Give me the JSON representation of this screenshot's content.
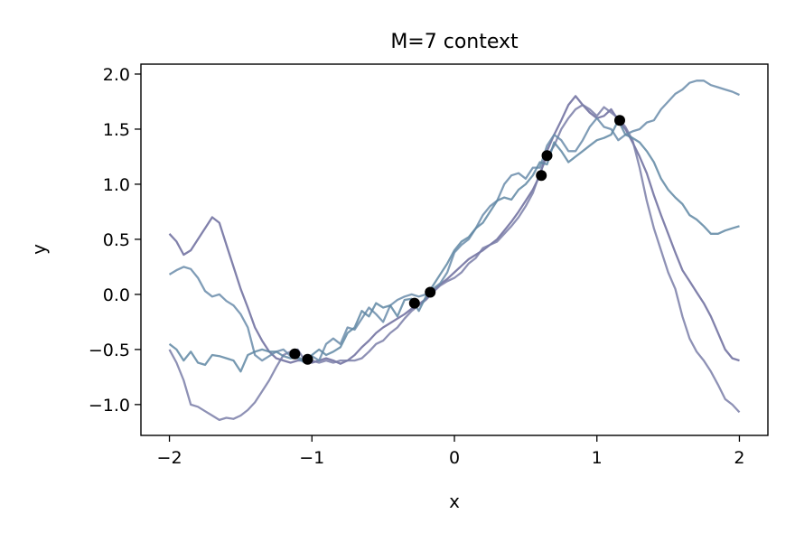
{
  "chart_data": {
    "type": "line",
    "title": "M=7 context",
    "xlabel": "x",
    "ylabel": "y",
    "xlim": [
      -2.2,
      2.2
    ],
    "ylim": [
      -1.28,
      2.09
    ],
    "grid": false,
    "x_ticks": [
      {
        "value": -2,
        "label": "−2"
      },
      {
        "value": -1,
        "label": "−1"
      },
      {
        "value": 0,
        "label": "0"
      },
      {
        "value": 1,
        "label": "1"
      },
      {
        "value": 2,
        "label": "2"
      }
    ],
    "y_ticks": [
      {
        "value": -1.0,
        "label": "−1.0"
      },
      {
        "value": -0.5,
        "label": "−0.5"
      },
      {
        "value": 0.0,
        "label": "0.0"
      },
      {
        "value": 0.5,
        "label": "0.5"
      },
      {
        "value": 1.0,
        "label": "1.0"
      },
      {
        "value": 1.5,
        "label": "1.5"
      },
      {
        "value": 2.0,
        "label": "2.0"
      }
    ],
    "context_points": {
      "color": "#000000",
      "x": [
        -1.12,
        -1.03,
        -0.28,
        -0.17,
        0.61,
        0.65,
        1.16
      ],
      "y": [
        -0.54,
        -0.59,
        -0.08,
        0.02,
        1.08,
        1.26,
        1.58
      ]
    },
    "series": [
      {
        "color": "#6b6b9c",
        "x": [
          -2.0,
          -1.95,
          -1.9,
          -1.85,
          -1.8,
          -1.75,
          -1.7,
          -1.65,
          -1.6,
          -1.55,
          -1.5,
          -1.45,
          -1.4,
          -1.35,
          -1.3,
          -1.25,
          -1.2,
          -1.15,
          -1.1,
          -1.05,
          -1.0,
          -0.95,
          -0.9,
          -0.85,
          -0.8,
          -0.75,
          -0.7,
          -0.65,
          -0.6,
          -0.55,
          -0.5,
          -0.45,
          -0.4,
          -0.35,
          -0.3,
          -0.25,
          -0.2,
          -0.15,
          -0.1,
          -0.05,
          0.0,
          0.05,
          0.1,
          0.15,
          0.2,
          0.25,
          0.3,
          0.35,
          0.4,
          0.45,
          0.5,
          0.55,
          0.6,
          0.65,
          0.7,
          0.75,
          0.8,
          0.85,
          0.9,
          0.95,
          1.0,
          1.05,
          1.1,
          1.15,
          1.2,
          1.25,
          1.3,
          1.35,
          1.4,
          1.45,
          1.5,
          1.55,
          1.6,
          1.65,
          1.7,
          1.75,
          1.8,
          1.85,
          1.9,
          1.95,
          2.0
        ],
        "y": [
          0.55,
          0.48,
          0.36,
          0.4,
          0.5,
          0.6,
          0.7,
          0.65,
          0.45,
          0.25,
          0.05,
          -0.12,
          -0.3,
          -0.42,
          -0.52,
          -0.58,
          -0.6,
          -0.62,
          -0.6,
          -0.6,
          -0.62,
          -0.6,
          -0.58,
          -0.6,
          -0.63,
          -0.6,
          -0.55,
          -0.48,
          -0.42,
          -0.35,
          -0.3,
          -0.26,
          -0.22,
          -0.18,
          -0.13,
          -0.09,
          -0.04,
          0.03,
          0.09,
          0.14,
          0.2,
          0.26,
          0.32,
          0.36,
          0.4,
          0.45,
          0.5,
          0.58,
          0.66,
          0.75,
          0.85,
          0.95,
          1.08,
          1.3,
          1.45,
          1.58,
          1.72,
          1.8,
          1.72,
          1.65,
          1.6,
          1.62,
          1.68,
          1.58,
          1.5,
          1.38,
          1.25,
          1.1,
          0.9,
          0.72,
          0.55,
          0.38,
          0.22,
          0.12,
          0.02,
          -0.08,
          -0.2,
          -0.35,
          -0.5,
          -0.58,
          -0.6
        ]
      },
      {
        "color": "#7a7ea8",
        "x": [
          -2.0,
          -1.95,
          -1.9,
          -1.85,
          -1.8,
          -1.75,
          -1.7,
          -1.65,
          -1.6,
          -1.55,
          -1.5,
          -1.45,
          -1.4,
          -1.35,
          -1.3,
          -1.25,
          -1.2,
          -1.15,
          -1.1,
          -1.05,
          -1.0,
          -0.95,
          -0.9,
          -0.85,
          -0.8,
          -0.75,
          -0.7,
          -0.65,
          -0.6,
          -0.55,
          -0.5,
          -0.45,
          -0.4,
          -0.35,
          -0.3,
          -0.25,
          -0.2,
          -0.15,
          -0.1,
          -0.05,
          0.0,
          0.05,
          0.1,
          0.15,
          0.2,
          0.25,
          0.3,
          0.35,
          0.4,
          0.45,
          0.5,
          0.55,
          0.6,
          0.65,
          0.7,
          0.75,
          0.8,
          0.85,
          0.9,
          0.95,
          1.0,
          1.05,
          1.1,
          1.15,
          1.2,
          1.25,
          1.3,
          1.35,
          1.4,
          1.45,
          1.5,
          1.55,
          1.6,
          1.65,
          1.7,
          1.75,
          1.8,
          1.85,
          1.9,
          1.95,
          2.0
        ],
        "y": [
          -0.5,
          -0.62,
          -0.78,
          -1.0,
          -1.02,
          -1.06,
          -1.1,
          -1.14,
          -1.12,
          -1.13,
          -1.1,
          -1.05,
          -0.98,
          -0.88,
          -0.78,
          -0.66,
          -0.55,
          -0.52,
          -0.5,
          -0.6,
          -0.6,
          -0.62,
          -0.6,
          -0.62,
          -0.6,
          -0.6,
          -0.6,
          -0.58,
          -0.52,
          -0.45,
          -0.42,
          -0.35,
          -0.3,
          -0.22,
          -0.15,
          -0.1,
          -0.05,
          0.02,
          0.08,
          0.12,
          0.15,
          0.2,
          0.28,
          0.33,
          0.42,
          0.45,
          0.48,
          0.55,
          0.62,
          0.7,
          0.8,
          0.92,
          1.1,
          1.25,
          1.35,
          1.5,
          1.6,
          1.68,
          1.72,
          1.68,
          1.62,
          1.7,
          1.65,
          1.6,
          1.52,
          1.4,
          1.15,
          0.85,
          0.6,
          0.4,
          0.2,
          0.05,
          -0.2,
          -0.4,
          -0.52,
          -0.6,
          -0.7,
          -0.82,
          -0.95,
          -1.0,
          -1.07
        ]
      },
      {
        "color": "#6a8caa",
        "x": [
          -2.0,
          -1.95,
          -1.9,
          -1.85,
          -1.8,
          -1.75,
          -1.7,
          -1.65,
          -1.6,
          -1.55,
          -1.5,
          -1.45,
          -1.4,
          -1.35,
          -1.3,
          -1.25,
          -1.2,
          -1.15,
          -1.1,
          -1.05,
          -1.0,
          -0.95,
          -0.9,
          -0.85,
          -0.8,
          -0.75,
          -0.7,
          -0.65,
          -0.6,
          -0.55,
          -0.5,
          -0.45,
          -0.4,
          -0.35,
          -0.3,
          -0.25,
          -0.2,
          -0.15,
          -0.1,
          -0.05,
          0.0,
          0.05,
          0.1,
          0.15,
          0.2,
          0.25,
          0.3,
          0.35,
          0.4,
          0.45,
          0.5,
          0.55,
          0.6,
          0.65,
          0.7,
          0.75,
          0.8,
          0.85,
          0.9,
          0.95,
          1.0,
          1.05,
          1.1,
          1.15,
          1.2,
          1.25,
          1.3,
          1.35,
          1.4,
          1.45,
          1.5,
          1.55,
          1.6,
          1.65,
          1.7,
          1.75,
          1.8,
          1.85,
          1.9,
          1.95,
          2.0
        ],
        "y": [
          0.18,
          0.22,
          0.25,
          0.23,
          0.15,
          0.03,
          -0.02,
          0.0,
          -0.06,
          -0.1,
          -0.18,
          -0.3,
          -0.55,
          -0.6,
          -0.56,
          -0.52,
          -0.5,
          -0.56,
          -0.58,
          -0.62,
          -0.56,
          -0.6,
          -0.45,
          -0.4,
          -0.45,
          -0.3,
          -0.32,
          -0.22,
          -0.12,
          -0.18,
          -0.25,
          -0.1,
          -0.05,
          -0.02,
          0.0,
          -0.02,
          0.0,
          0.05,
          0.1,
          0.2,
          0.38,
          0.45,
          0.5,
          0.6,
          0.72,
          0.8,
          0.85,
          1.0,
          1.08,
          1.1,
          1.05,
          1.15,
          1.15,
          1.35,
          1.45,
          1.4,
          1.3,
          1.3,
          1.4,
          1.52,
          1.6,
          1.52,
          1.5,
          1.4,
          1.45,
          1.48,
          1.5,
          1.56,
          1.58,
          1.68,
          1.75,
          1.82,
          1.86,
          1.92,
          1.94,
          1.94,
          1.9,
          1.88,
          1.86,
          1.84,
          1.81
        ]
      },
      {
        "color": "#5f87a3",
        "x": [
          -2.0,
          -1.95,
          -1.9,
          -1.85,
          -1.8,
          -1.75,
          -1.7,
          -1.65,
          -1.6,
          -1.55,
          -1.5,
          -1.45,
          -1.4,
          -1.35,
          -1.3,
          -1.25,
          -1.2,
          -1.15,
          -1.1,
          -1.05,
          -1.0,
          -0.95,
          -0.9,
          -0.85,
          -0.8,
          -0.75,
          -0.7,
          -0.65,
          -0.6,
          -0.55,
          -0.5,
          -0.45,
          -0.4,
          -0.35,
          -0.3,
          -0.25,
          -0.2,
          -0.15,
          -0.1,
          -0.05,
          0.0,
          0.05,
          0.1,
          0.15,
          0.2,
          0.25,
          0.3,
          0.35,
          0.4,
          0.45,
          0.5,
          0.55,
          0.6,
          0.65,
          0.7,
          0.75,
          0.8,
          0.85,
          0.9,
          0.95,
          1.0,
          1.05,
          1.1,
          1.15,
          1.2,
          1.25,
          1.3,
          1.35,
          1.4,
          1.45,
          1.5,
          1.55,
          1.6,
          1.65,
          1.7,
          1.75,
          1.8,
          1.85,
          1.9,
          1.95,
          2.0
        ],
        "y": [
          -0.45,
          -0.5,
          -0.6,
          -0.52,
          -0.62,
          -0.64,
          -0.55,
          -0.56,
          -0.58,
          -0.6,
          -0.7,
          -0.55,
          -0.52,
          -0.5,
          -0.52,
          -0.52,
          -0.56,
          -0.58,
          -0.57,
          -0.6,
          -0.55,
          -0.5,
          -0.55,
          -0.52,
          -0.48,
          -0.35,
          -0.3,
          -0.15,
          -0.2,
          -0.08,
          -0.12,
          -0.1,
          -0.2,
          -0.05,
          -0.04,
          -0.15,
          -0.02,
          0.08,
          0.18,
          0.28,
          0.4,
          0.48,
          0.52,
          0.6,
          0.65,
          0.75,
          0.85,
          0.88,
          0.86,
          0.95,
          1.0,
          1.08,
          1.2,
          1.18,
          1.38,
          1.3,
          1.2,
          1.25,
          1.3,
          1.35,
          1.4,
          1.42,
          1.45,
          1.58,
          1.45,
          1.42,
          1.38,
          1.3,
          1.2,
          1.05,
          0.95,
          0.88,
          0.82,
          0.72,
          0.68,
          0.62,
          0.55,
          0.55,
          0.58,
          0.6,
          0.62
        ]
      }
    ]
  }
}
